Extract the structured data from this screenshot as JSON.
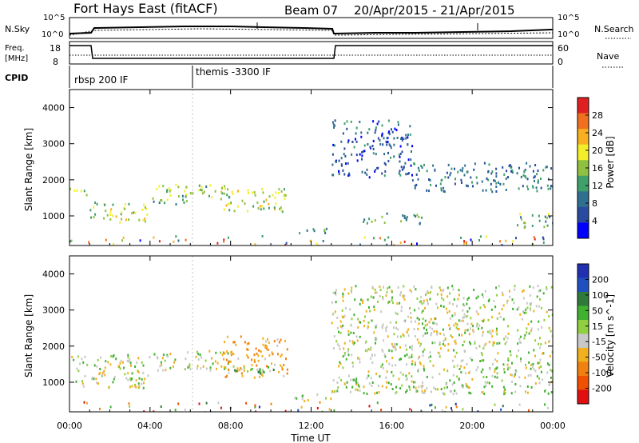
{
  "header": {
    "title": "Fort Hays East (fitACF)",
    "beam": "Beam 07",
    "date_range": "20/Apr/2015 - 21/Apr/2015"
  },
  "noise_panel": {
    "left_label": "N.Sky",
    "right_label": "N.Search",
    "left_ticks": [
      "10^5",
      "10^0"
    ],
    "right_ticks": [
      "10^5",
      "10^0"
    ]
  },
  "freq_panel": {
    "left_label_line1": "Freq.",
    "left_label_line2": "[MHz]",
    "right_label": "Nave",
    "left_ticks": [
      "18",
      "8"
    ],
    "right_ticks": [
      "60",
      "0"
    ]
  },
  "cpid_panel": {
    "label": "CPID",
    "segments": [
      {
        "start_hour": 0,
        "name": "rbsp 200 IF"
      },
      {
        "start_hour": 6,
        "name": "themis -3300 IF"
      }
    ]
  },
  "chart_data": [
    {
      "type": "heatmap",
      "parameter": "Power",
      "ylabel": "Slant Range [km]",
      "ylim": [
        180,
        4500
      ],
      "yticks": [
        1000,
        2000,
        3000,
        4000
      ],
      "xlim": [
        0,
        24
      ],
      "colorbar": {
        "label": "Power [dB]",
        "ticks": [
          "28",
          "24",
          "20",
          "16",
          "12",
          "8",
          "4"
        ],
        "colors": [
          "#0000ff",
          "#284ba0",
          "#2f6f8f",
          "#3fa06a",
          "#8fc040",
          "#f4ee2a",
          "#f8b020",
          "#f07020",
          "#e02020"
        ]
      },
      "echo_regions": [
        {
          "t_start": 0.0,
          "t_end": 1.0,
          "range_km": [
            1550,
            1800
          ],
          "power_db": 18
        },
        {
          "t_start": 1.0,
          "t_end": 4.0,
          "range_km": [
            850,
            1400
          ],
          "power_db": 17
        },
        {
          "t_start": 4.0,
          "t_end": 8.0,
          "range_km": [
            1350,
            1900
          ],
          "power_db": 15
        },
        {
          "t_start": 7.5,
          "t_end": 10.8,
          "range_km": [
            1150,
            1800
          ],
          "power_db": 18
        },
        {
          "t_start": 11.0,
          "t_end": 13.0,
          "range_km": [
            550,
            700
          ],
          "power_db": 10
        },
        {
          "t_start": 13.0,
          "t_end": 17.0,
          "range_km": [
            2100,
            3700
          ],
          "power_db": 6
        },
        {
          "t_start": 14.5,
          "t_end": 17.5,
          "range_km": [
            800,
            1100
          ],
          "power_db": 12
        },
        {
          "t_start": 17.0,
          "t_end": 24.0,
          "range_km": [
            1700,
            2500
          ],
          "power_db": 8
        },
        {
          "t_start": 22.0,
          "t_end": 24.0,
          "range_km": [
            700,
            1100
          ],
          "power_db": 14
        }
      ]
    },
    {
      "type": "heatmap",
      "parameter": "Velocity",
      "ylabel": "Slant Range [km]",
      "ylim": [
        180,
        4500
      ],
      "yticks": [
        1000,
        2000,
        3000,
        4000
      ],
      "xlim": [
        0,
        24
      ],
      "xlabel": "Time UT",
      "xticks": [
        "00:00",
        "04:00",
        "08:00",
        "12:00",
        "16:00",
        "20:00",
        "00:00"
      ],
      "colorbar": {
        "label": "Velocity [m s^-1]",
        "ticks": [
          "200",
          "100",
          "50",
          "15",
          "-15",
          "-50",
          "-100",
          "-200"
        ],
        "colors": [
          "#2030b0",
          "#2050c0",
          "#2f7a3a",
          "#40b030",
          "#90d040",
          "#c8c8c8",
          "#f0b020",
          "#f08010",
          "#f05000",
          "#e01010"
        ]
      },
      "echo_regions": [
        {
          "t_start": 0.0,
          "t_end": 4.0,
          "range_km": [
            850,
            1800
          ],
          "velocity": 0
        },
        {
          "t_start": 4.0,
          "t_end": 8.0,
          "range_km": [
            1350,
            1900
          ],
          "velocity": 0
        },
        {
          "t_start": 7.5,
          "t_end": 10.8,
          "range_km": [
            1150,
            2300
          ],
          "velocity": -40
        },
        {
          "t_start": 8.0,
          "t_end": 10.8,
          "range_km": [
            1200,
            1500
          ],
          "velocity": 30
        },
        {
          "t_start": 11.0,
          "t_end": 13.0,
          "range_km": [
            500,
            700
          ],
          "velocity": 0
        },
        {
          "t_start": 13.0,
          "t_end": 24.0,
          "range_km": [
            700,
            3700
          ],
          "velocity": 0
        }
      ]
    }
  ]
}
